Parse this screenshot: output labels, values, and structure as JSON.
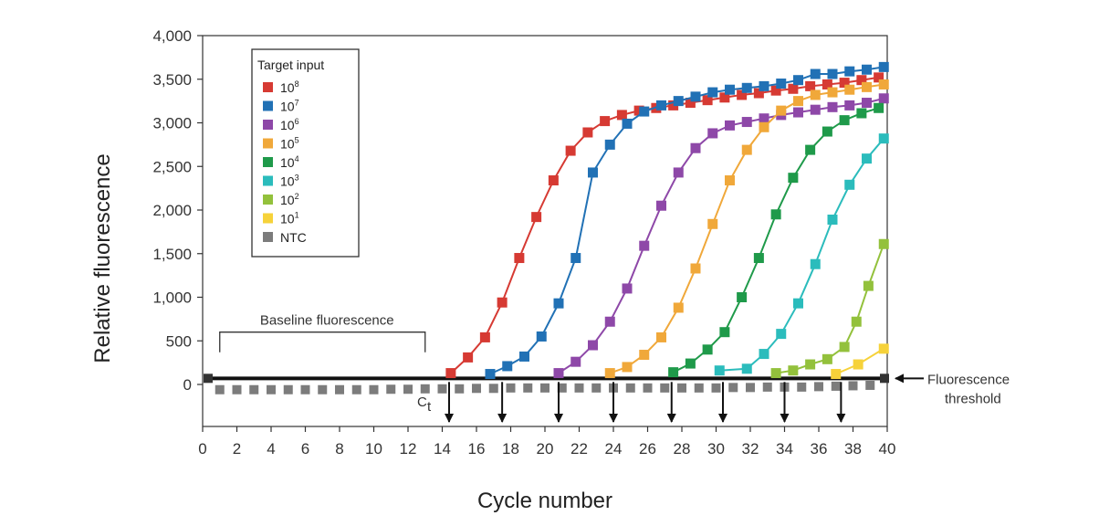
{
  "chart_data": {
    "type": "line",
    "xlabel": "Cycle number",
    "ylabel": "Relative fluorescence",
    "xlim": [
      0,
      40
    ],
    "ylim": [
      -500,
      4000
    ],
    "x_ticks": [
      "0",
      "2",
      "4",
      "6",
      "8",
      "10",
      "12",
      "14",
      "16",
      "18",
      "20",
      "22",
      "24",
      "26",
      "28",
      "30",
      "32",
      "34",
      "36",
      "38",
      "40"
    ],
    "y_ticks": [
      {
        "value": 4000,
        "label": "4,000"
      },
      {
        "value": 3500,
        "label": "3,500"
      },
      {
        "value": 3000,
        "label": "3,000"
      },
      {
        "value": 2500,
        "label": "2,500"
      },
      {
        "value": 2000,
        "label": "2,000"
      },
      {
        "value": 1500,
        "label": "1,500"
      },
      {
        "value": 1000,
        "label": "1,000"
      },
      {
        "value": 500,
        "label": "500"
      },
      {
        "value": 0,
        "label": "0"
      }
    ],
    "grid": false,
    "legend": {
      "title": "Target input",
      "position": "top-left"
    },
    "threshold": {
      "value": 70,
      "label_line1": "Fluorescence",
      "label_line2": "threshold"
    },
    "baseline": {
      "label": "Baseline fluorescence",
      "x_start": 1,
      "x_end": 13,
      "y": 600
    },
    "ct": {
      "label": "C",
      "subscript": "t",
      "cycles": [
        14.4,
        17.5,
        20.8,
        24.0,
        27.4,
        30.4,
        34.0,
        37.3
      ]
    },
    "series": [
      {
        "name_base": "10",
        "name_exp": "8",
        "color": "#d63a33",
        "points": [
          [
            14.5,
            130
          ],
          [
            15.5,
            310
          ],
          [
            16.5,
            540
          ],
          [
            17.5,
            940
          ],
          [
            18.5,
            1450
          ],
          [
            19.5,
            1920
          ],
          [
            20.5,
            2340
          ],
          [
            21.5,
            2680
          ],
          [
            22.5,
            2890
          ],
          [
            23.5,
            3020
          ],
          [
            24.5,
            3090
          ],
          [
            25.5,
            3140
          ],
          [
            26.5,
            3170
          ],
          [
            27.5,
            3200
          ],
          [
            28.5,
            3230
          ],
          [
            29.5,
            3260
          ],
          [
            30.5,
            3290
          ],
          [
            31.5,
            3320
          ],
          [
            32.5,
            3340
          ],
          [
            33.5,
            3370
          ],
          [
            34.5,
            3390
          ],
          [
            35.5,
            3420
          ],
          [
            36.5,
            3440
          ],
          [
            37.5,
            3460
          ],
          [
            38.5,
            3490
          ],
          [
            39.5,
            3520
          ]
        ]
      },
      {
        "name_base": "10",
        "name_exp": "7",
        "color": "#2171b5",
        "points": [
          [
            16.8,
            120
          ],
          [
            17.8,
            210
          ],
          [
            18.8,
            320
          ],
          [
            19.8,
            550
          ],
          [
            20.8,
            930
          ],
          [
            21.8,
            1450
          ],
          [
            22.8,
            2430
          ],
          [
            23.8,
            2750
          ],
          [
            24.8,
            2990
          ],
          [
            25.8,
            3130
          ],
          [
            26.8,
            3200
          ],
          [
            27.8,
            3250
          ],
          [
            28.8,
            3300
          ],
          [
            29.8,
            3350
          ],
          [
            30.8,
            3380
          ],
          [
            31.8,
            3400
          ],
          [
            32.8,
            3420
          ],
          [
            33.8,
            3450
          ],
          [
            34.8,
            3490
          ],
          [
            35.8,
            3560
          ],
          [
            36.8,
            3560
          ],
          [
            37.8,
            3590
          ],
          [
            38.8,
            3610
          ],
          [
            39.8,
            3640
          ]
        ]
      },
      {
        "name_base": "10",
        "name_exp": "6",
        "color": "#8e48a8",
        "points": [
          [
            20.8,
            130
          ],
          [
            21.8,
            260
          ],
          [
            22.8,
            450
          ],
          [
            23.8,
            720
          ],
          [
            24.8,
            1100
          ],
          [
            25.8,
            1590
          ],
          [
            26.8,
            2050
          ],
          [
            27.8,
            2430
          ],
          [
            28.8,
            2710
          ],
          [
            29.8,
            2880
          ],
          [
            30.8,
            2970
          ],
          [
            31.8,
            3010
          ],
          [
            32.8,
            3050
          ],
          [
            33.8,
            3090
          ],
          [
            34.8,
            3120
          ],
          [
            35.8,
            3150
          ],
          [
            36.8,
            3180
          ],
          [
            37.8,
            3200
          ],
          [
            38.8,
            3230
          ],
          [
            39.8,
            3280
          ]
        ]
      },
      {
        "name_base": "10",
        "name_exp": "5",
        "color": "#f0a83a",
        "points": [
          [
            23.8,
            130
          ],
          [
            24.8,
            200
          ],
          [
            25.8,
            340
          ],
          [
            26.8,
            540
          ],
          [
            27.8,
            880
          ],
          [
            28.8,
            1330
          ],
          [
            29.8,
            1840
          ],
          [
            30.8,
            2340
          ],
          [
            31.8,
            2690
          ],
          [
            32.8,
            2950
          ],
          [
            33.8,
            3140
          ],
          [
            34.8,
            3250
          ],
          [
            35.8,
            3320
          ],
          [
            36.8,
            3350
          ],
          [
            37.8,
            3380
          ],
          [
            38.8,
            3410
          ],
          [
            39.8,
            3440
          ]
        ]
      },
      {
        "name_base": "10",
        "name_exp": "4",
        "color": "#1f9a4a",
        "points": [
          [
            27.5,
            140
          ],
          [
            28.5,
            240
          ],
          [
            29.5,
            400
          ],
          [
            30.5,
            600
          ],
          [
            31.5,
            1000
          ],
          [
            32.5,
            1450
          ],
          [
            33.5,
            1950
          ],
          [
            34.5,
            2370
          ],
          [
            35.5,
            2690
          ],
          [
            36.5,
            2900
          ],
          [
            37.5,
            3030
          ],
          [
            38.5,
            3110
          ],
          [
            39.5,
            3170
          ]
        ]
      },
      {
        "name_base": "10",
        "name_exp": "3",
        "color": "#2bbcbc",
        "points": [
          [
            30.2,
            160
          ],
          [
            31.8,
            180
          ],
          [
            32.8,
            350
          ],
          [
            33.8,
            580
          ],
          [
            34.8,
            930
          ],
          [
            35.8,
            1380
          ],
          [
            36.8,
            1890
          ],
          [
            37.8,
            2290
          ],
          [
            38.8,
            2590
          ],
          [
            39.8,
            2820
          ]
        ]
      },
      {
        "name_base": "10",
        "name_exp": "2",
        "color": "#93c13c",
        "points": [
          [
            33.5,
            130
          ],
          [
            34.5,
            160
          ],
          [
            35.5,
            230
          ],
          [
            36.5,
            290
          ],
          [
            37.5,
            430
          ],
          [
            38.2,
            720
          ],
          [
            38.9,
            1130
          ],
          [
            39.8,
            1610
          ]
        ]
      },
      {
        "name_base": "10",
        "name_exp": "1",
        "color": "#f6d23a",
        "points": [
          [
            37.0,
            120
          ],
          [
            38.3,
            230
          ],
          [
            39.8,
            410
          ]
        ]
      },
      {
        "name_base": "NTC",
        "name_exp": "",
        "color": "#7c7c7c",
        "points": [
          [
            1,
            -60
          ],
          [
            2,
            -60
          ],
          [
            3,
            -60
          ],
          [
            4,
            -60
          ],
          [
            5,
            -60
          ],
          [
            6,
            -60
          ],
          [
            7,
            -60
          ],
          [
            8,
            -60
          ],
          [
            9,
            -60
          ],
          [
            10,
            -60
          ],
          [
            11,
            -55
          ],
          [
            12,
            -55
          ],
          [
            13,
            -50
          ],
          [
            14,
            -50
          ],
          [
            15,
            -50
          ],
          [
            16,
            -45
          ],
          [
            17,
            -45
          ],
          [
            18,
            -40
          ],
          [
            19,
            -40
          ],
          [
            20,
            -40
          ],
          [
            21,
            -40
          ],
          [
            22,
            -40
          ],
          [
            23,
            -40
          ],
          [
            24,
            -40
          ],
          [
            25,
            -40
          ],
          [
            26,
            -40
          ],
          [
            27,
            -40
          ],
          [
            28,
            -40
          ],
          [
            29,
            -40
          ],
          [
            30,
            -40
          ],
          [
            31,
            -35
          ],
          [
            32,
            -35
          ],
          [
            33,
            -30
          ],
          [
            34,
            -30
          ],
          [
            35,
            -30
          ],
          [
            36,
            -25
          ],
          [
            37,
            -20
          ],
          [
            38,
            -15
          ],
          [
            39,
            -10
          ]
        ]
      }
    ]
  }
}
